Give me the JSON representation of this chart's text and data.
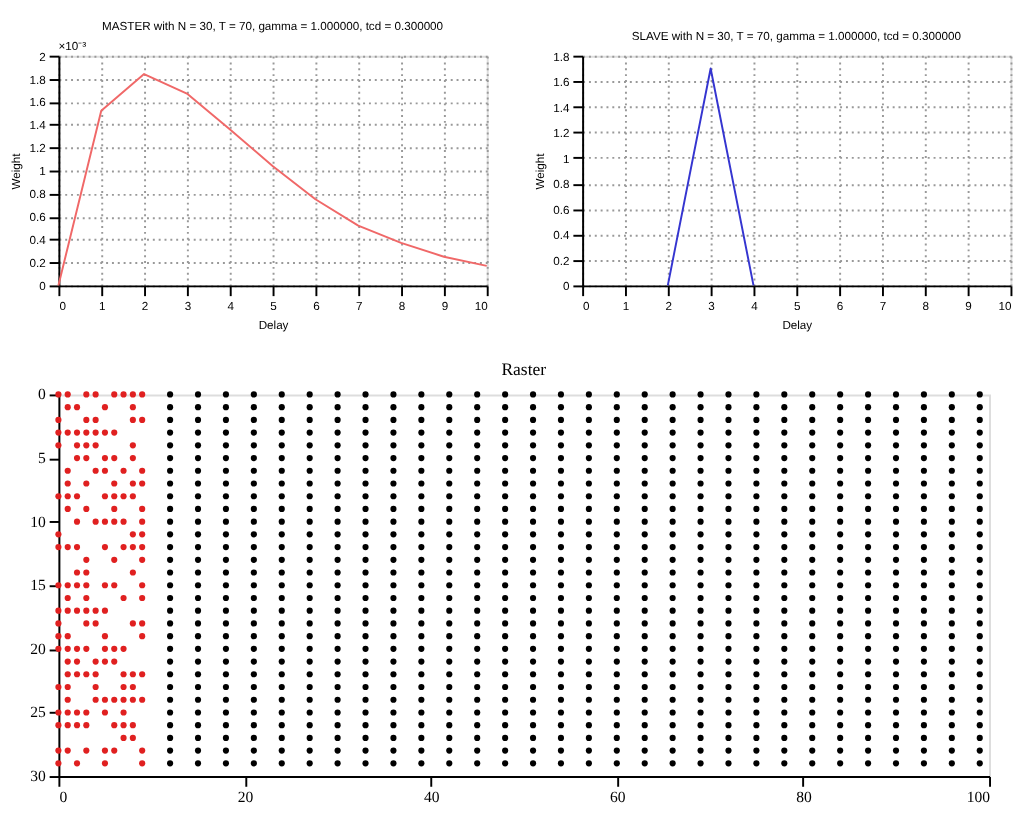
{
  "chart_data": [
    {
      "type": "line",
      "title": "MASTER with N = 30, T = 70, gamma = 1.000000, tcd = 0.300000",
      "xlabel": "Delay",
      "ylabel": "Weight",
      "annotations": [
        "×10⁻³"
      ],
      "x": [
        0,
        1,
        2,
        3,
        4,
        5,
        6,
        7,
        8,
        9,
        10
      ],
      "series": [
        {
          "color": "#f06868",
          "values": [
            0,
            1.52,
            1.84,
            1.67,
            1.36,
            1.04,
            0.75,
            0.52,
            0.37,
            0.25,
            0.17
          ]
        }
      ],
      "xlim": [
        0,
        10
      ],
      "xticks": [
        0,
        1,
        2,
        3,
        4,
        5,
        6,
        7,
        8,
        9,
        10
      ],
      "ylim": [
        0,
        2
      ],
      "yticks": [
        0,
        0.2,
        0.4,
        0.6,
        0.8,
        1,
        1.2,
        1.4,
        1.6,
        1.8,
        2
      ],
      "grid": true
    },
    {
      "type": "line",
      "title": "SLAVE with N = 30, T = 70, gamma = 1.000000, tcd = 0.300000",
      "xlabel": "Delay",
      "ylabel": "Weight",
      "x": [
        2,
        3,
        4
      ],
      "series": [
        {
          "color": "#3535d0",
          "values": [
            0,
            1.7,
            0
          ]
        }
      ],
      "xlim": [
        0,
        10
      ],
      "xticks": [
        0,
        1,
        2,
        3,
        4,
        5,
        6,
        7,
        8,
        9,
        10
      ],
      "ylim": [
        0,
        1.8
      ],
      "yticks": [
        0,
        0.2,
        0.4,
        0.6,
        0.8,
        1,
        1.2,
        1.4,
        1.6,
        1.8
      ],
      "grid": true
    },
    {
      "type": "scatter",
      "title": "Raster",
      "xlim": [
        0,
        100
      ],
      "xticks": [
        0,
        20,
        40,
        60,
        80,
        100
      ],
      "ylim": [
        30,
        0
      ],
      "yticks": [
        0,
        5,
        10,
        15,
        20,
        25,
        30
      ],
      "grid": false,
      "series": [
        {
          "color": "#000000",
          "x": [
            12,
            15,
            18,
            21,
            24,
            27,
            30,
            33,
            36,
            39,
            42,
            45,
            48,
            51,
            54,
            57,
            60,
            63,
            66,
            69,
            72,
            75,
            78,
            81,
            84,
            87,
            90,
            93,
            96,
            99,
            12,
            15,
            18,
            21,
            24,
            27,
            30,
            33,
            36,
            39,
            42,
            45,
            48,
            51,
            54,
            57,
            60,
            63,
            66,
            69,
            72,
            75,
            78,
            81,
            84,
            87,
            90,
            93,
            96,
            99,
            12,
            15,
            18,
            21,
            24,
            27,
            30,
            33,
            36,
            39,
            42,
            45,
            48,
            51,
            54,
            57,
            60,
            63,
            66,
            69,
            72,
            75,
            78,
            81,
            84,
            87,
            90,
            93,
            96,
            99,
            12,
            15,
            18,
            21,
            24,
            27,
            30,
            33,
            36,
            39,
            42,
            45,
            48,
            51,
            54,
            57,
            60,
            63,
            66,
            69,
            72,
            75,
            78,
            81,
            84,
            87,
            90,
            93,
            96,
            99,
            12,
            15,
            18,
            21,
            24,
            27,
            30,
            33,
            36,
            39,
            42,
            45,
            48,
            51,
            54,
            57,
            60,
            63,
            66,
            69,
            72,
            75,
            78,
            81,
            84,
            87,
            90,
            93,
            96,
            99,
            12,
            15,
            18,
            21,
            24,
            27,
            30,
            33,
            36,
            39,
            42,
            45,
            48,
            51,
            54,
            57,
            60,
            63,
            66,
            69,
            72,
            75,
            78,
            81,
            84,
            87,
            90,
            93,
            96,
            99,
            12,
            15,
            18,
            21,
            24,
            27,
            30,
            33,
            36,
            39,
            42,
            45,
            48,
            51,
            54,
            57,
            60,
            63,
            66,
            69,
            72,
            75,
            78,
            81,
            84,
            87,
            90,
            93,
            96,
            99,
            12,
            15,
            18,
            21,
            24,
            27,
            30,
            33,
            36,
            39,
            42,
            45,
            48,
            51,
            54,
            57,
            60,
            63,
            66,
            69,
            72,
            75,
            78,
            81,
            84,
            87,
            90,
            93,
            96,
            99,
            12,
            15,
            18,
            21,
            24,
            27,
            30,
            33,
            36,
            39,
            42,
            45,
            48,
            51,
            54,
            57,
            60,
            63,
            66,
            69,
            72,
            75,
            78,
            81,
            84,
            87,
            90,
            93,
            96,
            99,
            12,
            15,
            18,
            21,
            24,
            27,
            30,
            33,
            36,
            39,
            42,
            45,
            48,
            51,
            54,
            57,
            60,
            63,
            66,
            69,
            72,
            75,
            78,
            81,
            84,
            87,
            90,
            93,
            96,
            99,
            12,
            15,
            18,
            21,
            24,
            27,
            30,
            33,
            36,
            39,
            42,
            45,
            48,
            51,
            54,
            57,
            60,
            63,
            66,
            69,
            72,
            75,
            78,
            81,
            84,
            87,
            90,
            93,
            96,
            99,
            12,
            15,
            18,
            21,
            24,
            27,
            30,
            33,
            36,
            39,
            42,
            45,
            48,
            51,
            54,
            57,
            60,
            63,
            66,
            69,
            72,
            75,
            78,
            81,
            84,
            87,
            90,
            93,
            96,
            99,
            12,
            15,
            18,
            21,
            24,
            27,
            30,
            33,
            36,
            39,
            42,
            45,
            48,
            51,
            54,
            57,
            60,
            63,
            66,
            69,
            72,
            75,
            78,
            81,
            84,
            87,
            90,
            93,
            96,
            99,
            12,
            15,
            18,
            21,
            24,
            27,
            30,
            33,
            36,
            39,
            42,
            45,
            48,
            51,
            54,
            57,
            60,
            63,
            66,
            69,
            72,
            75,
            78,
            81,
            84,
            87,
            90,
            93,
            96,
            99,
            12,
            15,
            18,
            21,
            24,
            27,
            30,
            33,
            36,
            39,
            42,
            45,
            48,
            51,
            54,
            57,
            60,
            63,
            66,
            69,
            72,
            75,
            78,
            81,
            84,
            87,
            90,
            93,
            96,
            99,
            12,
            15,
            18,
            21,
            24,
            27,
            30,
            33,
            36,
            39,
            42,
            45,
            48,
            51,
            54,
            57,
            60,
            63,
            66,
            69,
            72,
            75,
            78,
            81,
            84,
            87,
            90,
            93,
            96,
            99,
            12,
            15,
            18,
            21,
            24,
            27,
            30,
            33,
            36,
            39,
            42,
            45,
            48,
            51,
            54,
            57,
            60,
            63,
            66,
            69,
            72,
            75,
            78,
            81,
            84,
            87,
            90,
            93,
            96,
            99,
            12,
            15,
            18,
            21,
            24,
            27,
            30,
            33,
            36,
            39,
            42,
            45,
            48,
            51,
            54,
            57,
            60,
            63,
            66,
            69,
            72,
            75,
            78,
            81,
            84,
            87,
            90,
            93,
            96,
            99,
            12,
            15,
            18,
            21,
            24,
            27,
            30,
            33,
            36,
            39,
            42,
            45,
            48,
            51,
            54,
            57,
            60,
            63,
            66,
            69,
            72,
            75,
            78,
            81,
            84,
            87,
            90,
            93,
            96,
            99,
            12,
            15,
            18,
            21,
            24,
            27,
            30,
            33,
            36,
            39,
            42,
            45,
            48,
            51,
            54,
            57,
            60,
            63,
            66,
            69,
            72,
            75,
            78,
            81,
            84,
            87,
            90,
            93,
            96,
            99,
            12,
            15,
            18,
            21,
            24,
            27,
            30,
            33,
            36,
            39,
            42,
            45,
            48,
            51,
            54,
            57,
            60,
            63,
            66,
            69,
            72,
            75,
            78,
            81,
            84,
            87,
            90,
            93,
            96,
            99,
            12,
            15,
            18,
            21,
            24,
            27,
            30,
            33,
            36,
            39,
            42,
            45,
            48,
            51,
            54,
            57,
            60,
            63,
            66,
            69,
            72,
            75,
            78,
            81,
            84,
            87,
            90,
            93,
            96,
            99,
            12,
            15,
            18,
            21,
            24,
            27,
            30,
            33,
            36,
            39,
            42,
            45,
            48,
            51,
            54,
            57,
            60,
            63,
            66,
            69,
            72,
            75,
            78,
            81,
            84,
            87,
            90,
            93,
            96,
            99,
            12,
            15,
            18,
            21,
            24,
            27,
            30,
            33,
            36,
            39,
            42,
            45,
            48,
            51,
            54,
            57,
            60,
            63,
            66,
            69,
            72,
            75,
            78,
            81,
            84,
            87,
            90,
            93,
            96,
            99,
            12,
            15,
            18,
            21,
            24,
            27,
            30,
            33,
            36,
            39,
            42,
            45,
            48,
            51,
            54,
            57,
            60,
            63,
            66,
            69,
            72,
            75,
            78,
            81,
            84,
            87,
            90,
            93,
            96,
            99,
            12,
            15,
            18,
            21,
            24,
            27,
            30,
            33,
            36,
            39,
            42,
            45,
            48,
            51,
            54,
            57,
            60,
            63,
            66,
            69,
            72,
            75,
            78,
            81,
            84,
            87,
            90,
            93,
            96,
            99,
            12,
            15,
            18,
            21,
            24,
            27,
            30,
            33,
            36,
            39,
            42,
            45,
            48,
            51,
            54,
            57,
            60,
            63,
            66,
            69,
            72,
            75,
            78,
            81,
            84,
            87,
            90,
            93,
            96,
            99,
            12,
            15,
            18,
            21,
            24,
            27,
            30,
            33,
            36,
            39,
            42,
            45,
            48,
            51,
            54,
            57,
            60,
            63,
            66,
            69,
            72,
            75,
            78,
            81,
            84,
            87,
            90,
            93,
            96,
            99,
            12,
            15,
            18,
            21,
            24,
            27,
            30,
            33,
            36,
            39,
            42,
            45,
            48,
            51,
            54,
            57,
            60,
            63,
            66,
            69,
            72,
            75,
            78,
            81,
            84,
            87,
            90,
            93,
            96,
            99,
            12,
            15,
            18,
            21,
            24,
            27,
            30,
            33,
            36,
            39,
            42,
            45,
            48,
            51,
            54,
            57,
            60,
            63,
            66,
            69,
            72,
            75,
            78,
            81,
            84,
            87,
            90,
            93,
            96,
            99
          ],
          "values": [
            0,
            0,
            0,
            0,
            0,
            0,
            0,
            0,
            0,
            0,
            0,
            0,
            0,
            0,
            0,
            0,
            0,
            0,
            0,
            0,
            0,
            0,
            0,
            0,
            0,
            0,
            0,
            0,
            0,
            0,
            1,
            1,
            1,
            1,
            1,
            1,
            1,
            1,
            1,
            1,
            1,
            1,
            1,
            1,
            1,
            1,
            1,
            1,
            1,
            1,
            1,
            1,
            1,
            1,
            1,
            1,
            1,
            1,
            1,
            1,
            2,
            2,
            2,
            2,
            2,
            2,
            2,
            2,
            2,
            2,
            2,
            2,
            2,
            2,
            2,
            2,
            2,
            2,
            2,
            2,
            2,
            2,
            2,
            2,
            2,
            2,
            2,
            2,
            2,
            2,
            3,
            3,
            3,
            3,
            3,
            3,
            3,
            3,
            3,
            3,
            3,
            3,
            3,
            3,
            3,
            3,
            3,
            3,
            3,
            3,
            3,
            3,
            3,
            3,
            3,
            3,
            3,
            3,
            3,
            3,
            4,
            4,
            4,
            4,
            4,
            4,
            4,
            4,
            4,
            4,
            4,
            4,
            4,
            4,
            4,
            4,
            4,
            4,
            4,
            4,
            4,
            4,
            4,
            4,
            4,
            4,
            4,
            4,
            4,
            4,
            5,
            5,
            5,
            5,
            5,
            5,
            5,
            5,
            5,
            5,
            5,
            5,
            5,
            5,
            5,
            5,
            5,
            5,
            5,
            5,
            5,
            5,
            5,
            5,
            5,
            5,
            5,
            5,
            5,
            5,
            6,
            6,
            6,
            6,
            6,
            6,
            6,
            6,
            6,
            6,
            6,
            6,
            6,
            6,
            6,
            6,
            6,
            6,
            6,
            6,
            6,
            6,
            6,
            6,
            6,
            6,
            6,
            6,
            6,
            6,
            7,
            7,
            7,
            7,
            7,
            7,
            7,
            7,
            7,
            7,
            7,
            7,
            7,
            7,
            7,
            7,
            7,
            7,
            7,
            7,
            7,
            7,
            7,
            7,
            7,
            7,
            7,
            7,
            7,
            7,
            8,
            8,
            8,
            8,
            8,
            8,
            8,
            8,
            8,
            8,
            8,
            8,
            8,
            8,
            8,
            8,
            8,
            8,
            8,
            8,
            8,
            8,
            8,
            8,
            8,
            8,
            8,
            8,
            8,
            8,
            9,
            9,
            9,
            9,
            9,
            9,
            9,
            9,
            9,
            9,
            9,
            9,
            9,
            9,
            9,
            9,
            9,
            9,
            9,
            9,
            9,
            9,
            9,
            9,
            9,
            9,
            9,
            9,
            9,
            9,
            10,
            10,
            10,
            10,
            10,
            10,
            10,
            10,
            10,
            10,
            10,
            10,
            10,
            10,
            10,
            10,
            10,
            10,
            10,
            10,
            10,
            10,
            10,
            10,
            10,
            10,
            10,
            10,
            10,
            10,
            11,
            11,
            11,
            11,
            11,
            11,
            11,
            11,
            11,
            11,
            11,
            11,
            11,
            11,
            11,
            11,
            11,
            11,
            11,
            11,
            11,
            11,
            11,
            11,
            11,
            11,
            11,
            11,
            11,
            11,
            12,
            12,
            12,
            12,
            12,
            12,
            12,
            12,
            12,
            12,
            12,
            12,
            12,
            12,
            12,
            12,
            12,
            12,
            12,
            12,
            12,
            12,
            12,
            12,
            12,
            12,
            12,
            12,
            12,
            12,
            13,
            13,
            13,
            13,
            13,
            13,
            13,
            13,
            13,
            13,
            13,
            13,
            13,
            13,
            13,
            13,
            13,
            13,
            13,
            13,
            13,
            13,
            13,
            13,
            13,
            13,
            13,
            13,
            13,
            13,
            14,
            14,
            14,
            14,
            14,
            14,
            14,
            14,
            14,
            14,
            14,
            14,
            14,
            14,
            14,
            14,
            14,
            14,
            14,
            14,
            14,
            14,
            14,
            14,
            14,
            14,
            14,
            14,
            14,
            14,
            15,
            15,
            15,
            15,
            15,
            15,
            15,
            15,
            15,
            15,
            15,
            15,
            15,
            15,
            15,
            15,
            15,
            15,
            15,
            15,
            15,
            15,
            15,
            15,
            15,
            15,
            15,
            15,
            15,
            15,
            16,
            16,
            16,
            16,
            16,
            16,
            16,
            16,
            16,
            16,
            16,
            16,
            16,
            16,
            16,
            16,
            16,
            16,
            16,
            16,
            16,
            16,
            16,
            16,
            16,
            16,
            16,
            16,
            16,
            16,
            17,
            17,
            17,
            17,
            17,
            17,
            17,
            17,
            17,
            17,
            17,
            17,
            17,
            17,
            17,
            17,
            17,
            17,
            17,
            17,
            17,
            17,
            17,
            17,
            17,
            17,
            17,
            17,
            17,
            17,
            18,
            18,
            18,
            18,
            18,
            18,
            18,
            18,
            18,
            18,
            18,
            18,
            18,
            18,
            18,
            18,
            18,
            18,
            18,
            18,
            18,
            18,
            18,
            18,
            18,
            18,
            18,
            18,
            18,
            18,
            19,
            19,
            19,
            19,
            19,
            19,
            19,
            19,
            19,
            19,
            19,
            19,
            19,
            19,
            19,
            19,
            19,
            19,
            19,
            19,
            19,
            19,
            19,
            19,
            19,
            19,
            19,
            19,
            19,
            19,
            20,
            20,
            20,
            20,
            20,
            20,
            20,
            20,
            20,
            20,
            20,
            20,
            20,
            20,
            20,
            20,
            20,
            20,
            20,
            20,
            20,
            20,
            20,
            20,
            20,
            20,
            20,
            20,
            20,
            20,
            21,
            21,
            21,
            21,
            21,
            21,
            21,
            21,
            21,
            21,
            21,
            21,
            21,
            21,
            21,
            21,
            21,
            21,
            21,
            21,
            21,
            21,
            21,
            21,
            21,
            21,
            21,
            21,
            21,
            21,
            22,
            22,
            22,
            22,
            22,
            22,
            22,
            22,
            22,
            22,
            22,
            22,
            22,
            22,
            22,
            22,
            22,
            22,
            22,
            22,
            22,
            22,
            22,
            22,
            22,
            22,
            22,
            22,
            22,
            22,
            23,
            23,
            23,
            23,
            23,
            23,
            23,
            23,
            23,
            23,
            23,
            23,
            23,
            23,
            23,
            23,
            23,
            23,
            23,
            23,
            23,
            23,
            23,
            23,
            23,
            23,
            23,
            23,
            23,
            23,
            24,
            24,
            24,
            24,
            24,
            24,
            24,
            24,
            24,
            24,
            24,
            24,
            24,
            24,
            24,
            24,
            24,
            24,
            24,
            24,
            24,
            24,
            24,
            24,
            24,
            24,
            24,
            24,
            24,
            24,
            25,
            25,
            25,
            25,
            25,
            25,
            25,
            25,
            25,
            25,
            25,
            25,
            25,
            25,
            25,
            25,
            25,
            25,
            25,
            25,
            25,
            25,
            25,
            25,
            25,
            25,
            25,
            25,
            25,
            25,
            26,
            26,
            26,
            26,
            26,
            26,
            26,
            26,
            26,
            26,
            26,
            26,
            26,
            26,
            26,
            26,
            26,
            26,
            26,
            26,
            26,
            26,
            26,
            26,
            26,
            26,
            26,
            26,
            26,
            26,
            27,
            27,
            27,
            27,
            27,
            27,
            27,
            27,
            27,
            27,
            27,
            27,
            27,
            27,
            27,
            27,
            27,
            27,
            27,
            27,
            27,
            27,
            27,
            27,
            27,
            27,
            27,
            27,
            27,
            27,
            28,
            28,
            28,
            28,
            28,
            28,
            28,
            28,
            28,
            28,
            28,
            28,
            28,
            28,
            28,
            28,
            28,
            28,
            28,
            28,
            28,
            28,
            28,
            28,
            28,
            28,
            28,
            28,
            28,
            28,
            29,
            29,
            29,
            29,
            29,
            29,
            29,
            29,
            29,
            29,
            29,
            29,
            29,
            29,
            29,
            29,
            29,
            29,
            29,
            29,
            29,
            29,
            29,
            29,
            29,
            29,
            29,
            29,
            29,
            29
          ]
        },
        {
          "color": "#e02020",
          "x": [
            0,
            1,
            3,
            4,
            6,
            7,
            8,
            9,
            1,
            2,
            5,
            8,
            0,
            3,
            4,
            8,
            9,
            0,
            1,
            2,
            3,
            4,
            5,
            6,
            0,
            2,
            3,
            4,
            8,
            2,
            3,
            5,
            6,
            8,
            1,
            4,
            5,
            7,
            9,
            1,
            3,
            6,
            8,
            9,
            0,
            1,
            2,
            5,
            6,
            7,
            8,
            1,
            3,
            6,
            9,
            2,
            4,
            5,
            6,
            7,
            9,
            0,
            8,
            9,
            0,
            1,
            2,
            5,
            7,
            8,
            9,
            3,
            6,
            9,
            2,
            3,
            8,
            0,
            1,
            2,
            3,
            5,
            6,
            9,
            1,
            3,
            7,
            9,
            0,
            1,
            2,
            3,
            4,
            5,
            0,
            3,
            4,
            8,
            9,
            0,
            1,
            5,
            9,
            0,
            1,
            2,
            3,
            5,
            6,
            7,
            1,
            2,
            4,
            5,
            6,
            1,
            2,
            3,
            4,
            7,
            8,
            9,
            0,
            1,
            4,
            7,
            8,
            1,
            4,
            5,
            6,
            7,
            8,
            9,
            0,
            1,
            2,
            3,
            5,
            7,
            0,
            1,
            2,
            3,
            6,
            7,
            8,
            7,
            8,
            0,
            1,
            3,
            5,
            6,
            9,
            0,
            2,
            5,
            9
          ],
          "values": [
            0,
            0,
            0,
            0,
            0,
            0,
            0,
            0,
            1,
            1,
            1,
            1,
            2,
            2,
            2,
            2,
            2,
            3,
            3,
            3,
            3,
            3,
            3,
            3,
            4,
            4,
            4,
            4,
            4,
            5,
            5,
            5,
            5,
            5,
            6,
            6,
            6,
            6,
            6,
            7,
            7,
            7,
            7,
            7,
            8,
            8,
            8,
            8,
            8,
            8,
            8,
            9,
            9,
            9,
            9,
            10,
            10,
            10,
            10,
            10,
            10,
            11,
            11,
            11,
            12,
            12,
            12,
            12,
            12,
            12,
            12,
            13,
            13,
            13,
            14,
            14,
            14,
            15,
            15,
            15,
            15,
            15,
            15,
            15,
            16,
            16,
            16,
            16,
            17,
            17,
            17,
            17,
            17,
            17,
            18,
            18,
            18,
            18,
            18,
            19,
            19,
            19,
            19,
            20,
            20,
            20,
            20,
            20,
            20,
            20,
            21,
            21,
            21,
            21,
            21,
            22,
            22,
            22,
            22,
            22,
            22,
            22,
            23,
            23,
            23,
            23,
            23,
            24,
            24,
            24,
            24,
            24,
            24,
            24,
            25,
            25,
            25,
            25,
            25,
            25,
            26,
            26,
            26,
            26,
            26,
            26,
            26,
            27,
            27,
            28,
            28,
            28,
            28,
            28,
            28,
            29,
            29,
            29,
            29
          ]
        }
      ]
    }
  ]
}
